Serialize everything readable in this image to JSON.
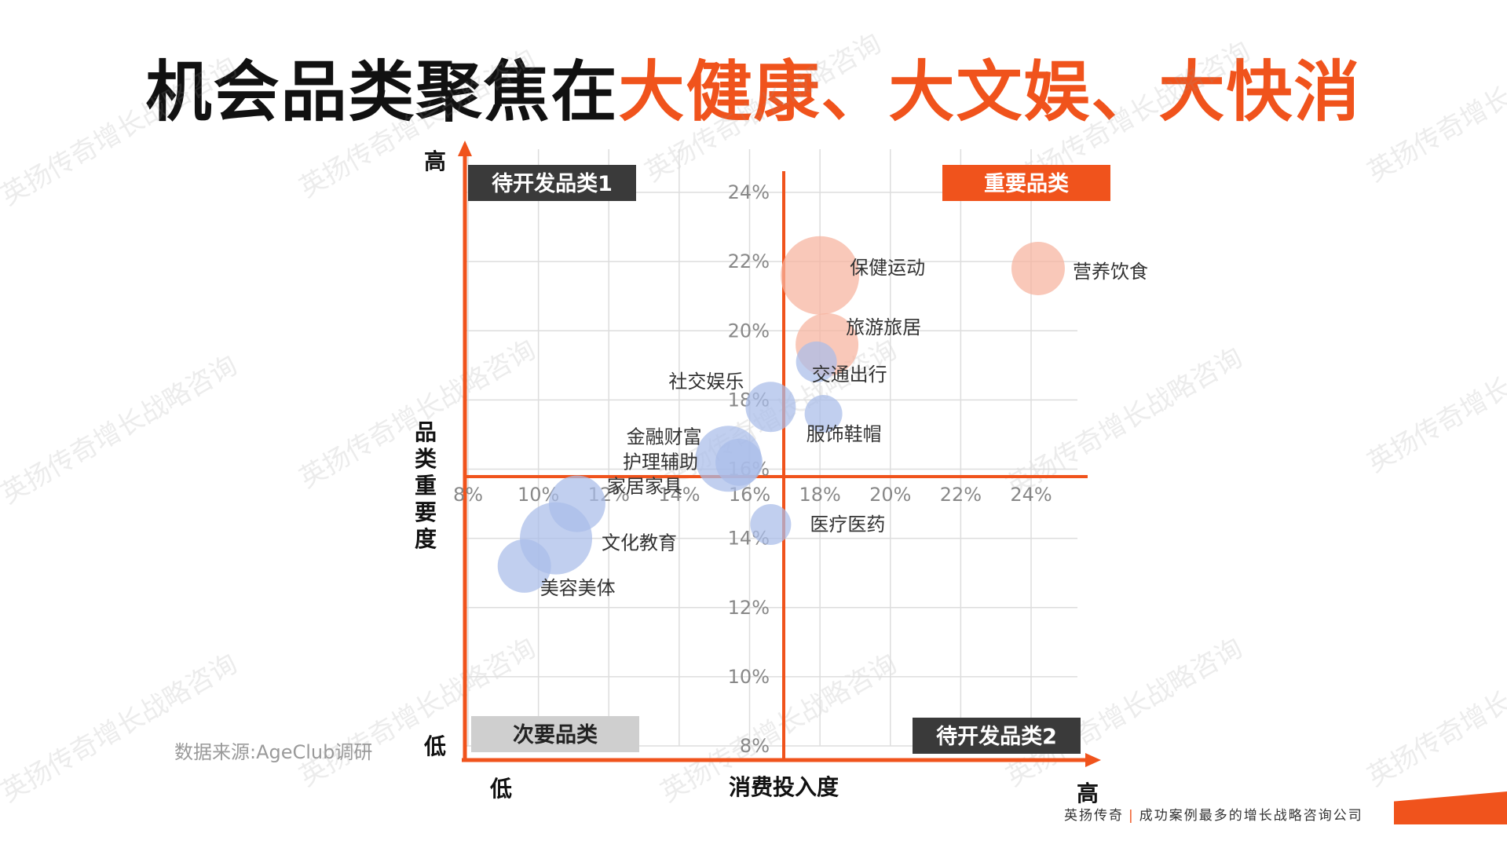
{
  "title": {
    "part1": "机会品类聚焦在",
    "part2": "大健康、大文娱、大快消"
  },
  "watermark": "英扬传奇增长战略咨询",
  "source": "数据来源:AgeClub调研",
  "footer": {
    "brand": "英扬传奇",
    "separator": "|",
    "slogan": "成功案例最多的增长战略咨询公司"
  },
  "colors": {
    "accent": "#f0531c",
    "dark_tag": "#3a3a3a",
    "light_tag": "#cfcfcf",
    "bubble_blue": "#a9bde9",
    "bubble_orange": "#f7b39e"
  },
  "chart_data": {
    "type": "scatter",
    "xlabel": "消费投入度",
    "ylabel": "品类重要度",
    "x_low": "低",
    "x_high": "高",
    "y_low": "低",
    "y_high": "高",
    "xlim": [
      8,
      24
    ],
    "ylim": [
      8,
      24
    ],
    "x_ticks": [
      "8%",
      "10%",
      "12%",
      "14%",
      "16%",
      "18%",
      "20%",
      "22%",
      "24%"
    ],
    "y_ticks": [
      "8%",
      "10%",
      "12%",
      "14%",
      "16%",
      "18%",
      "20%",
      "22%",
      "24%"
    ],
    "grid": true,
    "quadrants": {
      "top_left": "待开发品类1",
      "top_right": "重要品类",
      "bottom_left": "次要品类",
      "bottom_right": "待开发品类2"
    },
    "points": [
      {
        "label": "保健运动",
        "x": 18.0,
        "y": 21.6,
        "group": "important"
      },
      {
        "label": "营养饮食",
        "x": 24.2,
        "y": 21.8,
        "group": "important"
      },
      {
        "label": "旅游旅居",
        "x": 18.2,
        "y": 19.6,
        "group": "important"
      },
      {
        "label": "交通出行",
        "x": 17.9,
        "y": 19.1,
        "group": "secondary"
      },
      {
        "label": "社交娱乐",
        "x": 16.6,
        "y": 17.8,
        "group": "secondary"
      },
      {
        "label": "服饰鞋帽",
        "x": 18.1,
        "y": 17.6,
        "group": "secondary"
      },
      {
        "label": "金融财富",
        "x": 15.4,
        "y": 16.3,
        "group": "secondary"
      },
      {
        "label": "护理辅助",
        "x": 15.7,
        "y": 16.2,
        "group": "secondary"
      },
      {
        "label": "家居家具",
        "x": 11.1,
        "y": 15.0,
        "group": "secondary"
      },
      {
        "label": "医疗医药",
        "x": 16.6,
        "y": 14.4,
        "group": "secondary"
      },
      {
        "label": "文化教育",
        "x": 10.5,
        "y": 14.0,
        "group": "secondary"
      },
      {
        "label": "美容美体",
        "x": 9.6,
        "y": 13.2,
        "group": "secondary"
      }
    ]
  }
}
